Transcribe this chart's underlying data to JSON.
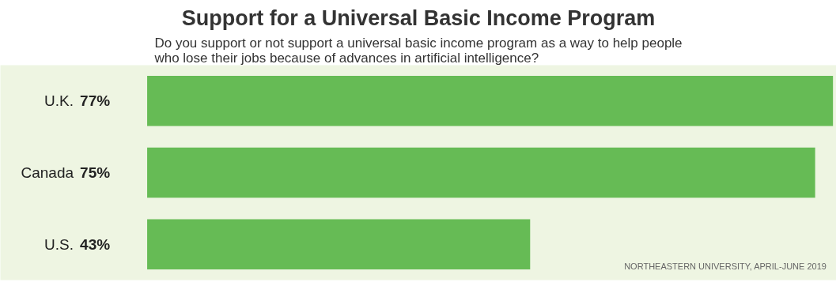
{
  "chart_data": {
    "type": "bar",
    "orientation": "horizontal",
    "title": "Support for a Universal Basic Income Program",
    "subtitle": "Do you support or not support a universal basic income program as a way to help people who lose their jobs because of advances in artificial intelligence?",
    "categories": [
      "U.K.",
      "Canada",
      "U.S."
    ],
    "values": [
      77,
      75,
      43
    ],
    "color": "#66bb55",
    "value_labels": [
      "77%",
      "75%",
      "43%"
    ],
    "annotations": [
      "NORTHEASTERN UNIVERSITY, APRIL-JUNE 2019"
    ]
  }
}
